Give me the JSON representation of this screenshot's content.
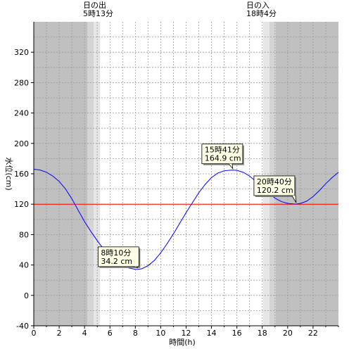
{
  "sunrise": {
    "label": "日の出",
    "time": "5時13分",
    "hour": 5.2167
  },
  "sunset": {
    "label": "日の入",
    "time": "18時4分",
    "hour": 18.0667
  },
  "colors": {
    "night": "#c0c0c0",
    "twilight_dark": "#d4d4d4",
    "twilight_light": "#e6e6e6",
    "day": "#ffffff",
    "curve": "#0000ff",
    "reference_line": "#ff0000",
    "callout_bg": "#ffffe6"
  },
  "chart_data": {
    "type": "line",
    "xlabel": "時間(h)",
    "ylabel": "水位(cm)",
    "xlim": [
      0,
      24
    ],
    "ylim": [
      -40,
      360
    ],
    "xticks": [
      0,
      2,
      4,
      6,
      8,
      10,
      12,
      14,
      16,
      18,
      20,
      22
    ],
    "yticks": [
      -40,
      0,
      40,
      80,
      120,
      160,
      200,
      240,
      280,
      320
    ],
    "grid": true,
    "reference_line": 120,
    "series": [
      {
        "x": [
          0,
          0.5,
          1,
          1.5,
          2,
          2.5,
          3,
          3.5,
          4,
          4.5,
          5,
          5.5,
          6,
          6.5,
          7,
          7.5,
          8,
          8.17,
          8.5,
          9,
          9.5,
          10,
          10.5,
          11,
          11.5,
          12,
          12.5,
          13,
          13.5,
          14,
          14.5,
          15,
          15.5,
          15.68,
          16,
          16.5,
          17,
          17.5,
          18,
          18.5,
          19,
          19.5,
          20,
          20.5,
          20.67,
          21,
          21.5,
          22,
          22.5,
          23,
          23.5,
          24
        ],
        "y": [
          166,
          165,
          162,
          157,
          150,
          140,
          127,
          112,
          97,
          84,
          72,
          61,
          52,
          45,
          40,
          36,
          34.3,
          34.2,
          35,
          39,
          46,
          56,
          68,
          81,
          95,
          109,
          122,
          135,
          146,
          155,
          161,
          164,
          164.8,
          164.9,
          164.5,
          162,
          157,
          150,
          142,
          135,
          128,
          123.5,
          121,
          120.3,
          120.2,
          121,
          124,
          130,
          138,
          147,
          155,
          162
        ]
      }
    ],
    "annotations": [
      {
        "time": "8時10分",
        "value": "34.2 cm",
        "x": 8.17,
        "y": 34.2
      },
      {
        "time": "15時41分",
        "value": "164.9 cm",
        "x": 15.68,
        "y": 164.9
      },
      {
        "time": "20時40分",
        "value": "120.2 cm",
        "x": 20.67,
        "y": 120.2
      }
    ]
  }
}
